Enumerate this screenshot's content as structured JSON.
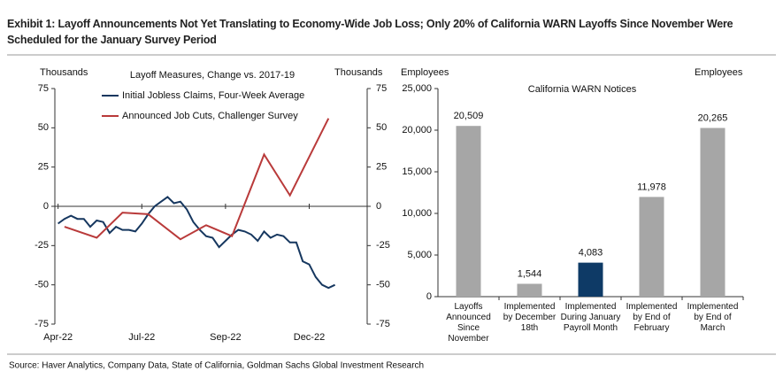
{
  "title": "Exhibit 1: Layoff Announcements Not Yet Translating to Economy-Wide Job Loss; Only 20% of California WARN Layoffs Since November Were Scheduled for the January Survey Period",
  "source": "Source: Haver Analytics, Company Data, State of California, Goldman Sachs Global Investment Research",
  "chart_data": [
    {
      "type": "line",
      "title": "Layoff Measures, Change vs. 2017-19",
      "y_label": "Thousands",
      "y2_label": "Thousands",
      "xlim": [
        -0.5,
        48
      ],
      "xticks": [
        {
          "value": 0,
          "label": "Apr-22"
        },
        {
          "value": 13,
          "label": "Jul-22"
        },
        {
          "value": 26,
          "label": "Sep-22"
        },
        {
          "value": 39,
          "label": "Dec-22"
        }
      ],
      "ylim": [
        -75,
        75
      ],
      "yticks": [
        -75,
        -50,
        -25,
        0,
        25,
        50,
        75
      ],
      "y2lim": [
        -75,
        75
      ],
      "y2ticks": [
        -75,
        -50,
        -25,
        0,
        25,
        50,
        75
      ],
      "series": [
        {
          "name": "Initial Jobless Claims, Four-Week Average",
          "color": "#16375f",
          "x": [
            0,
            1,
            2,
            3,
            4,
            5,
            6,
            7,
            8,
            9,
            10,
            11,
            12,
            13,
            14,
            15,
            16,
            17,
            18,
            19,
            20,
            21,
            22,
            23,
            24,
            25,
            26,
            27,
            28,
            29,
            30,
            31,
            32,
            33,
            34,
            35,
            36,
            37,
            38,
            39,
            40,
            41,
            42,
            43
          ],
          "values": [
            -11,
            -8,
            -6,
            -8,
            -8,
            -13,
            -9,
            -10,
            -17,
            -13,
            -15,
            -15,
            -16,
            -11,
            -5,
            0,
            3,
            6,
            2,
            3,
            -2,
            -10,
            -15,
            -19,
            -20,
            -26,
            -22,
            -18,
            -15,
            -16,
            -18,
            -22,
            -16,
            -20,
            -18,
            -19,
            -23,
            -23,
            -35,
            -37,
            -45,
            -50,
            -52,
            -50
          ]
        },
        {
          "name": "Announced Job Cuts, Challenger Survey",
          "color": "#b93a3a",
          "axis": "y2",
          "x": [
            1,
            6,
            10,
            14,
            19,
            23,
            27,
            32,
            36,
            42
          ],
          "values": [
            -13,
            -20,
            -4,
            -5,
            -21,
            -12,
            -19,
            33,
            7,
            56
          ]
        }
      ]
    },
    {
      "type": "bar",
      "title": "California WARN Notices",
      "y_label": "Employees",
      "y2_label": "Employees",
      "categories": [
        "Layoffs Announced Since November",
        "Implemented by December 18th",
        "Implemented During January Payroll Month",
        "Implemented by End of February",
        "Implemented by End of March"
      ],
      "values": [
        20509,
        1544,
        4083,
        11978,
        20265
      ],
      "value_labels": [
        "20,509",
        "1,544",
        "4,083",
        "11,978",
        "20,265"
      ],
      "colors": [
        "#a6a6a6",
        "#a6a6a6",
        "#0e3a66",
        "#a6a6a6",
        "#a6a6a6"
      ],
      "ylim": [
        0,
        25000
      ],
      "yticks": [
        0,
        {
          "value": 5000,
          "label": "5,000"
        },
        {
          "value": 10000,
          "label": "10,000"
        },
        {
          "value": 15000,
          "label": "15,000"
        },
        {
          "value": 20000,
          "label": "20,000"
        },
        {
          "value": 25000,
          "label": "25,000"
        }
      ]
    }
  ]
}
